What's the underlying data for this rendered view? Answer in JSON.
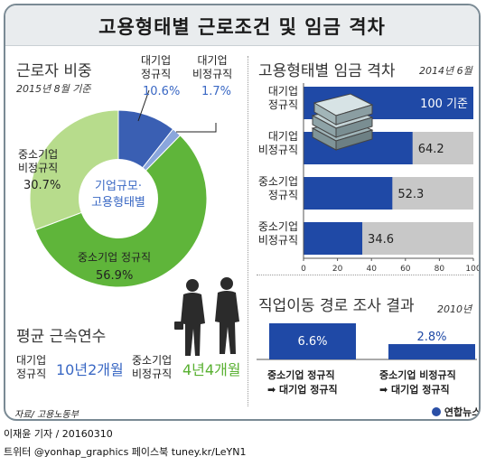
{
  "title": "고용형태별 근로조건 및 임금 격차",
  "composition": {
    "title": "근로자 비중",
    "date": "2015년 8월 기준",
    "center_line1": "기업규모·",
    "center_line2": "고용형태별",
    "labels": {
      "large_regular": [
        "대기업",
        "정규직"
      ],
      "large_irregular": [
        "대기업",
        "비정규직"
      ],
      "sme_regular": "중소기업 정규직",
      "sme_irregular": [
        "중소기업",
        "비정규직"
      ]
    },
    "values_text": {
      "large_regular": "10.6%",
      "large_irregular": "1.7%",
      "sme_regular": "56.9%",
      "sme_irregular": "30.7%"
    }
  },
  "tenure": {
    "title": "평균 근속연수",
    "large_label": [
      "대기업",
      "정규직"
    ],
    "large_value": "10년2개월",
    "sme_label": [
      "중소기업",
      "비정규직"
    ],
    "sme_value": "4년4개월"
  },
  "wage": {
    "title": "고용형태별 임금 격차",
    "date": "2014년 6월",
    "labels": [
      [
        "대기업",
        "정규직"
      ],
      [
        "대기업",
        "비정규직"
      ],
      [
        "중소기업",
        "정규직"
      ],
      [
        "중소기업",
        "비정규직"
      ]
    ],
    "value_labels": [
      "100 기준",
      "64.2",
      "52.3",
      "34.6"
    ],
    "ticks": [
      "0",
      "20",
      "40",
      "60",
      "80",
      "100"
    ]
  },
  "mobility": {
    "title": "직업이동 경로 조사 결과",
    "year": "2010년",
    "value_labels": [
      "6.6%",
      "2.8%"
    ],
    "paths": [
      [
        "중소기업 정규직",
        "➡ 대기업 정규직"
      ],
      [
        "중소기업 비정규직",
        "➡ 대기업 정규직"
      ]
    ]
  },
  "source": "자료/ 고용노동부",
  "logo": "연합뉴스",
  "credit": "이재윤 기자 / 20160310",
  "sns": "트위터 @yonhap_graphics  페이스북 tuney.kr/LeYN1",
  "colors": {
    "large_regular": "#3a5fb3",
    "large_irregular": "#8aa6dc",
    "sme_regular": "#5fb53a",
    "sme_irregular": "#b7dc8c",
    "bar": "#1f49a6",
    "bar_bg": "#c8c8c8",
    "blue_text": "#3a68c4",
    "green_text": "#58b030"
  },
  "chart_data": [
    {
      "type": "pie",
      "title": "근로자 비중",
      "categories": [
        "대기업 정규직",
        "대기업 비정규직",
        "중소기업 정규직",
        "중소기업 비정규직"
      ],
      "values": [
        10.6,
        1.7,
        56.9,
        30.7
      ]
    },
    {
      "type": "bar",
      "title": "고용형태별 임금 격차",
      "categories": [
        "대기업 정규직",
        "대기업 비정규직",
        "중소기업 정규직",
        "중소기업 비정규직"
      ],
      "values": [
        100,
        64.2,
        52.3,
        34.6
      ],
      "xlim": [
        0,
        100
      ],
      "orientation": "horizontal"
    },
    {
      "type": "bar",
      "title": "직업이동 경로 조사 결과",
      "categories": [
        "중소기업 정규직 ➡ 대기업 정규직",
        "중소기업 비정규직 ➡ 대기업 정규직"
      ],
      "values": [
        6.6,
        2.8
      ]
    }
  ]
}
